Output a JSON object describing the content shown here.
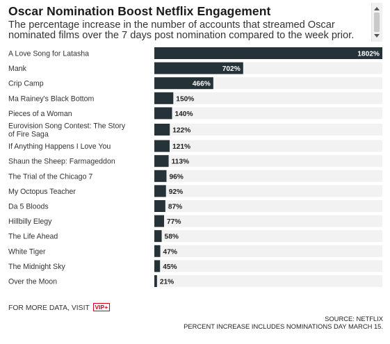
{
  "header": {
    "title": "Oscar Nomination Boost Netflix Engagement",
    "subtitle": "The percentage increase in the number of accounts that streamed Oscar nominated films over the 7 days post nomination compared to the week prior."
  },
  "chart_data": {
    "type": "bar",
    "orientation": "horizontal",
    "categories": [
      "A Love Song for Latasha",
      "Mank",
      "Crip Camp",
      "Ma Rainey's Black Bottom",
      "Pieces of a Woman",
      "Eurovision Song Contest: The Story of Fire Saga",
      "If Anything Happens I Love You",
      "Shaun the Sheep: Farmageddon",
      "The Trial of the Chicago 7",
      "My Octopus Teacher",
      "Da 5 Bloods",
      "Hillbilly Elegy",
      "The Life Ahead",
      "White Tiger",
      "The Midnight Sky",
      "Over the Moon"
    ],
    "values": [
      1802,
      702,
      466,
      150,
      140,
      122,
      121,
      113,
      96,
      92,
      87,
      77,
      58,
      47,
      45,
      21
    ],
    "value_labels": [
      "1802%",
      "702%",
      "466%",
      "150%",
      "140%",
      "122%",
      "121%",
      "113%",
      "96%",
      "92%",
      "87%",
      "77%",
      "58%",
      "47%",
      "45%",
      "21%"
    ],
    "xlim": [
      0,
      1802
    ],
    "bar_color": "#253238",
    "track_color": "#f2f2f2",
    "grid": false
  },
  "footer": {
    "more_data": "FOR MORE DATA, VISIT",
    "vip": "VIP+",
    "source": "SOURCE: NETFLIX",
    "note": "PERCENT INCREASE INCLUDES NOMINATIONS DAY MARCH 15."
  }
}
